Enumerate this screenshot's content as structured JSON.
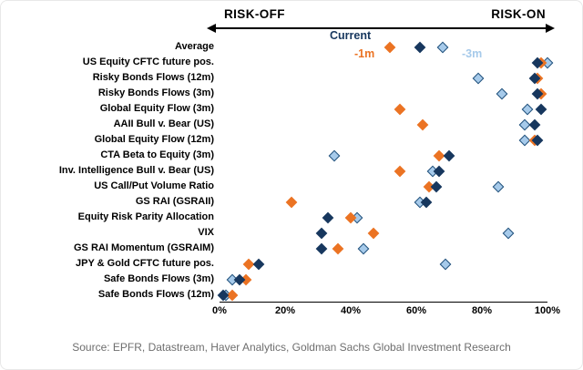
{
  "header": {
    "risk_off": "RISK-OFF",
    "risk_on": "RISK-ON"
  },
  "chart_data": {
    "type": "scatter",
    "title": "",
    "x_ticks": [
      "0%",
      "20%",
      "40%",
      "60%",
      "80%",
      "100%"
    ],
    "xlim": [
      0,
      100
    ],
    "grid": false,
    "legend_position": "top annotations near Average row",
    "categories": [
      "Average",
      "US Equity CFTC future pos.",
      "Risky Bonds Flows (12m)",
      "Risky Bonds Flows (3m)",
      "Global Equity Flow (3m)",
      "AAII Bull v. Bear (US)",
      "Global Equity Flow (12m)",
      "CTA Beta to Equity (3m)",
      "Inv. Intelligence Bull v. Bear (US)",
      "US Call/Put Volume Ratio",
      "GS RAI (GSRAII)",
      "Equity Risk Parity Allocation",
      "VIX",
      "GS RAI Momentum (GSRAIM)",
      "JPY & Gold CFTC future pos.",
      "Safe Bonds Flows (3m)",
      "Safe Bonds Flows (12m)"
    ],
    "series": [
      {
        "key": "current",
        "name": "Current",
        "color": "#17375E",
        "values": [
          61,
          97,
          96,
          97,
          98,
          96,
          97,
          70,
          67,
          66,
          63,
          33,
          31,
          31,
          12,
          6,
          1
        ]
      },
      {
        "key": "minus-1m",
        "name": "-1m",
        "color": "#EB7323",
        "values": [
          52,
          98,
          97,
          98,
          55,
          62,
          96,
          67,
          55,
          64,
          22,
          40,
          47,
          36,
          9,
          8,
          4
        ]
      },
      {
        "key": "minus-3m",
        "name": "-3m",
        "color": "#A6CAEA",
        "outline": "#1F4E79",
        "values": [
          68,
          100,
          79,
          86,
          94,
          93,
          93,
          35,
          65,
          85,
          61,
          42,
          88,
          44,
          69,
          4,
          2
        ]
      }
    ]
  },
  "source": "Source: EPFR, Datastream, Haver Analytics, Goldman Sachs Global Investment Research"
}
